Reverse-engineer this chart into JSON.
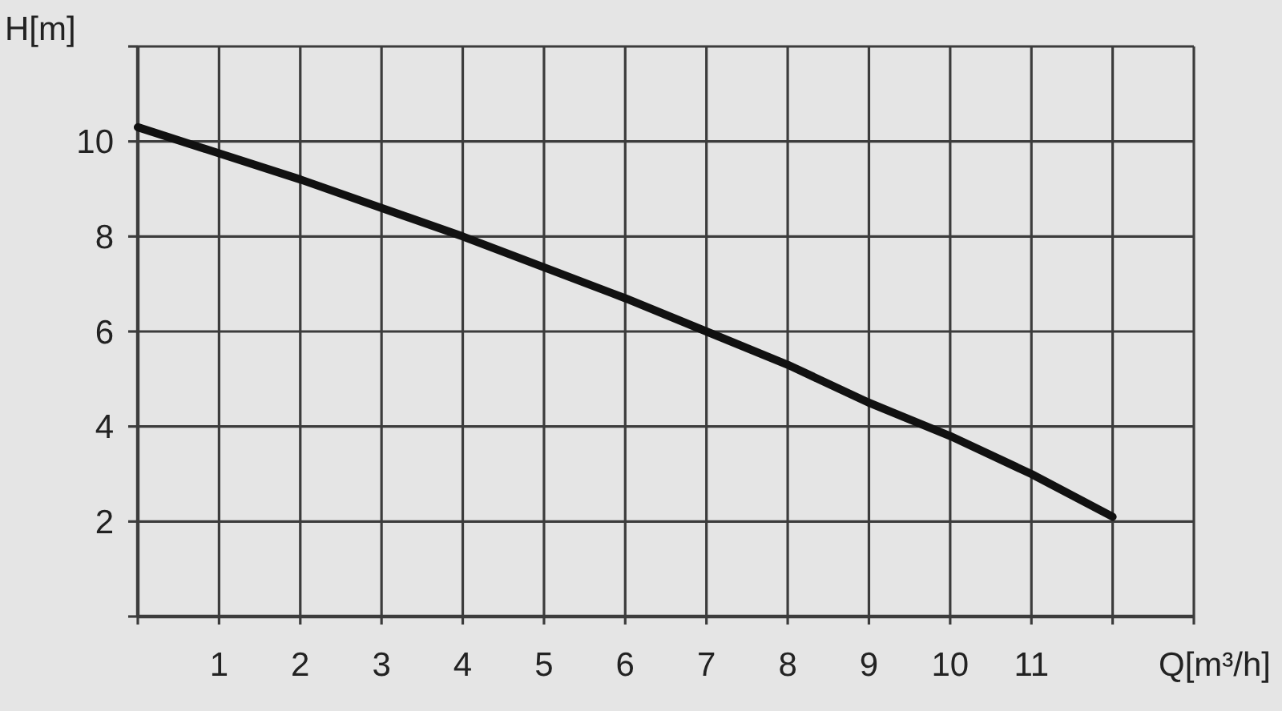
{
  "chart_data": {
    "type": "line",
    "xlabel": "Q[m³/h]",
    "ylabel": "H[m]",
    "x": [
      0,
      1,
      2,
      3,
      4,
      5,
      6,
      7,
      8,
      9,
      10,
      11,
      12
    ],
    "values": [
      10.3,
      9.75,
      9.2,
      8.6,
      8.0,
      7.35,
      6.7,
      6.0,
      5.3,
      4.5,
      3.8,
      3.0,
      2.1
    ],
    "color": "#111111",
    "xlim": [
      0,
      13
    ],
    "ylim": [
      0,
      12
    ],
    "xticks": [
      {
        "value": 0,
        "label": null
      },
      1,
      2,
      3,
      4,
      5,
      6,
      7,
      8,
      9,
      10,
      11,
      {
        "value": 12,
        "label": null
      },
      {
        "value": 13,
        "label": null
      }
    ],
    "yticks": [
      {
        "value": 0,
        "label": null
      },
      2,
      4,
      6,
      8,
      10,
      {
        "value": 12,
        "label": null
      }
    ],
    "grid": true
  }
}
